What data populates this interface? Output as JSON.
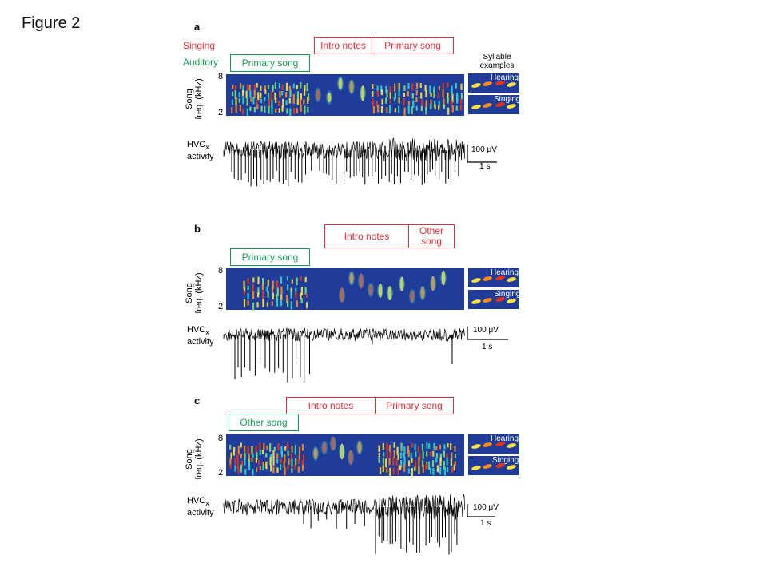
{
  "slide": {
    "title": "Figure 2"
  },
  "legend": {
    "singing": "Singing",
    "auditory": "Auditory",
    "singing_color": "#e0303a",
    "auditory_color": "#1a9a5a"
  },
  "axis": {
    "song_freq_label": "Song\nfreq. (kHz)",
    "tick_high": "8",
    "tick_low": "2",
    "hvc_label_main": "HVC",
    "hvc_label_sub": "x",
    "hvc_label_tail": "activity"
  },
  "scalebar": {
    "voltage": "100 μV",
    "time": "1 s"
  },
  "syllables": {
    "header": "Syllable\nexamples",
    "hearing": "Hearing",
    "singing": "Singing"
  },
  "panels": [
    {
      "letter": "a",
      "singing_boxes": [
        "Intro notes",
        "Primary song"
      ],
      "auditory_boxes": [
        "Primary song"
      ]
    },
    {
      "letter": "b",
      "singing_boxes": [
        "Intro notes",
        "Other\nsong"
      ],
      "auditory_boxes": [
        "Primary song"
      ]
    },
    {
      "letter": "c",
      "singing_boxes": [
        "Intro notes",
        "Primary song"
      ],
      "auditory_boxes": [
        "Other song"
      ]
    }
  ]
}
